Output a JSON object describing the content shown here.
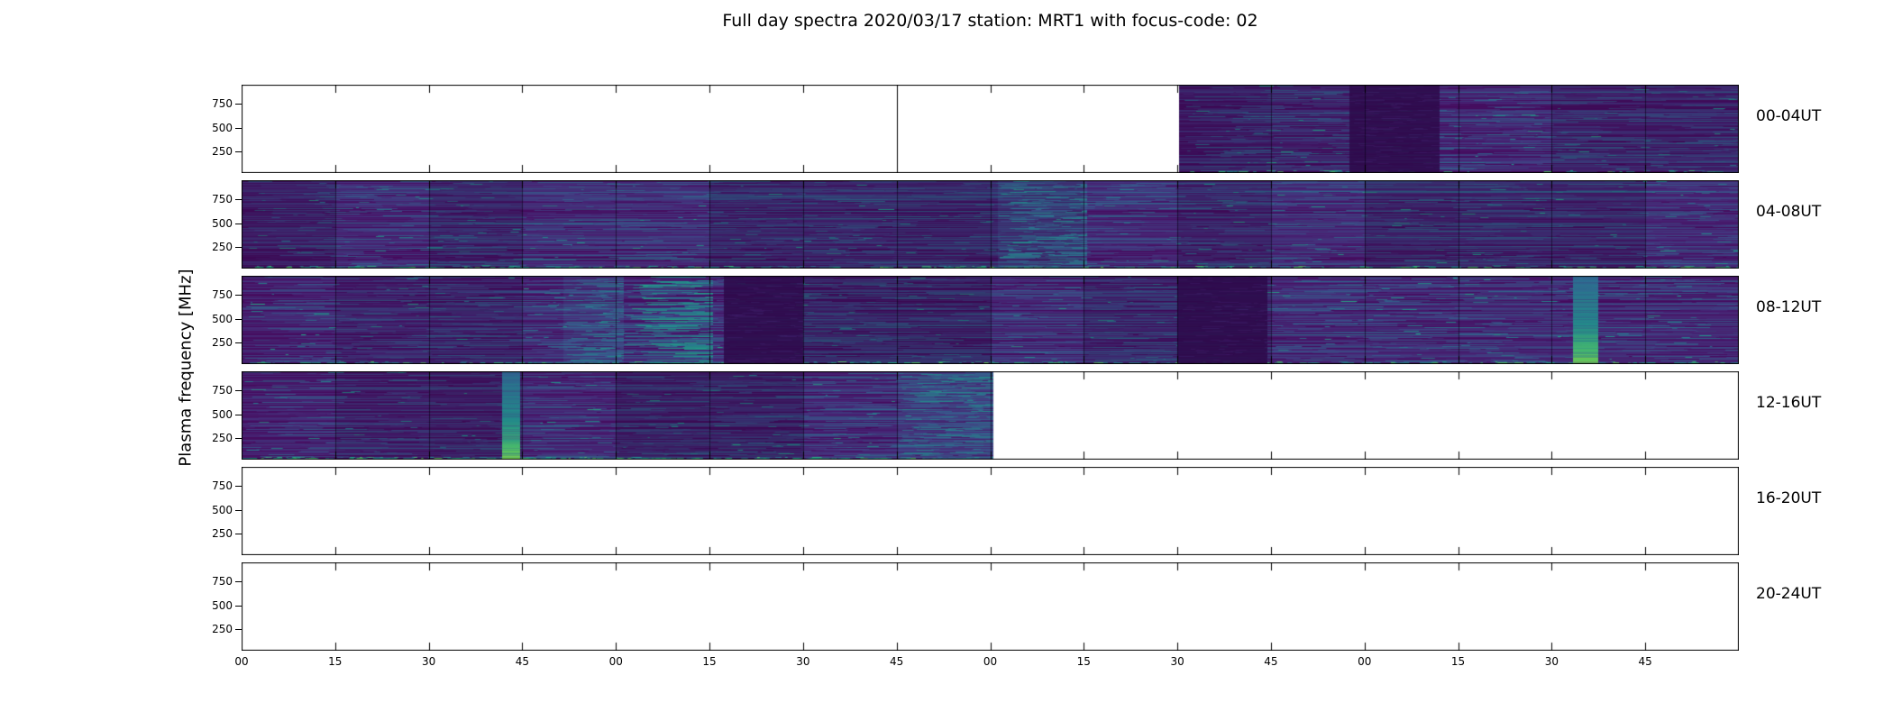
{
  "title": "Full day spectra 2020/03/17 station: MRT1 with focus-code: 02",
  "y_axis": {
    "label": "Plasma frequency [MHz]",
    "tick_labels": [
      "750",
      "500",
      "250"
    ]
  },
  "x_axis": {
    "tick_labels": [
      "00",
      "15",
      "30",
      "45",
      "00",
      "15",
      "30",
      "45",
      "00",
      "15",
      "30",
      "45",
      "00",
      "15",
      "30",
      "45"
    ]
  },
  "chart_data": {
    "type": "heatmap",
    "subtype": "spectrogram-grid",
    "colormap": "viridis",
    "station": "MRT1",
    "date": "2020/03/17",
    "focus_code": "02",
    "row_duration_hours": 4,
    "x_tick_interval_minutes": 15,
    "y_ticks_mhz": [
      250,
      500,
      750
    ],
    "background_no_data": "#ffffff",
    "rows": [
      {
        "label": "00-04UT",
        "coverage": [
          {
            "start": 0.626,
            "end": 1.0
          }
        ],
        "features": [
          {
            "type": "divider",
            "at": 0.4375
          },
          {
            "type": "dark_block",
            "start": 0.74,
            "end": 0.8
          }
        ],
        "bottom_glow": 0.4
      },
      {
        "label": "04-08UT",
        "coverage": [
          {
            "start": 0.0,
            "end": 1.0
          }
        ],
        "features": [
          {
            "type": "light_block",
            "start": 0.505,
            "end": 0.565
          }
        ],
        "bottom_glow": 0.7
      },
      {
        "label": "08-12UT",
        "coverage": [
          {
            "start": 0.0,
            "end": 1.0
          }
        ],
        "features": [
          {
            "type": "light_block",
            "start": 0.215,
            "end": 0.255
          },
          {
            "type": "streak_block",
            "start": 0.255,
            "end": 0.315
          },
          {
            "type": "dark_block",
            "start": 0.322,
            "end": 0.375
          },
          {
            "type": "dark_block",
            "start": 0.625,
            "end": 0.685
          },
          {
            "type": "teal_band",
            "start": 0.889,
            "end": 0.906
          }
        ],
        "bottom_glow": 0.7
      },
      {
        "label": "12-16UT",
        "coverage": [
          {
            "start": 0.0,
            "end": 0.502
          }
        ],
        "features": [
          {
            "type": "teal_band",
            "start": 0.174,
            "end": 0.186
          },
          {
            "type": "light_block",
            "start": 0.438,
            "end": 0.502
          }
        ],
        "bottom_glow": 1.1
      },
      {
        "label": "16-20UT",
        "coverage": [],
        "features": [],
        "bottom_glow": 0
      },
      {
        "label": "20-24UT",
        "coverage": [],
        "features": [],
        "bottom_glow": 0
      }
    ]
  }
}
